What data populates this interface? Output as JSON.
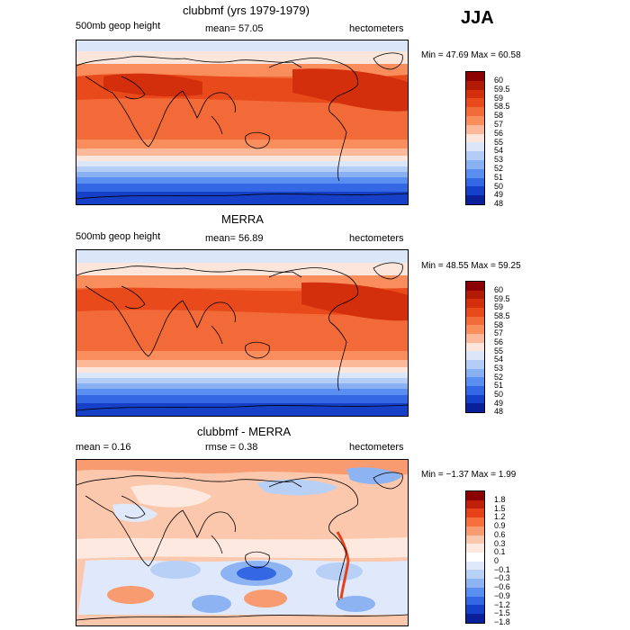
{
  "season": "JJA",
  "panels": [
    {
      "title": "clubbmf (yrs 1979-1979)",
      "left_text": "500mb geop height",
      "mid_text": "mean=  57.05",
      "right_text": "hectometers",
      "minmax": "Min =  47.69 Max =  60.58",
      "levels": [
        "60",
        "59.5",
        "59",
        "58.5",
        "58",
        "57",
        "56",
        "55",
        "54",
        "53",
        "52",
        "51",
        "50",
        "49",
        "48"
      ]
    },
    {
      "title": "MERRA",
      "left_text": "500mb geop height",
      "mid_text": "mean=  56.89",
      "right_text": "hectometers",
      "minmax": "Min =  48.55 Max =  59.25",
      "levels": [
        "60",
        "59.5",
        "59",
        "58.5",
        "58",
        "57",
        "56",
        "55",
        "54",
        "53",
        "52",
        "51",
        "50",
        "49",
        "48"
      ]
    },
    {
      "title": "clubbmf - MERRA",
      "left_text": "mean =    0.16",
      "mid_text": "rmse =    0.38",
      "right_text": "hectometers",
      "minmax": "Min =  −1.37 Max =    1.99",
      "levels": [
        "1.8",
        "1.5",
        "1.2",
        "0.9",
        "0.6",
        "0.3",
        "0.1",
        "0",
        "−0.1",
        "−0.3",
        "−0.6",
        "−0.9",
        "−1.2",
        "−1.5",
        "−1.8"
      ]
    }
  ],
  "colors": {
    "scale": [
      "#8b0000",
      "#b21a05",
      "#d42f0c",
      "#e84a1b",
      "#f26a38",
      "#f98e5c",
      "#fcb999",
      "#fce6dc",
      "#dbe7f9",
      "#b3cdf7",
      "#8ab0f4",
      "#5b8ef1",
      "#3467e4",
      "#1740c8",
      "#0a1f9a"
    ],
    "diff_scale": [
      "#8b0000",
      "#c0200a",
      "#e5421a",
      "#f5703c",
      "#f99b71",
      "#fcc8ad",
      "#fde9df",
      "#ffffff",
      "#e0e9fb",
      "#b8cff6",
      "#8db3f2",
      "#5b8ef1",
      "#3467e4",
      "#1740c8",
      "#0a1f9a"
    ]
  }
}
